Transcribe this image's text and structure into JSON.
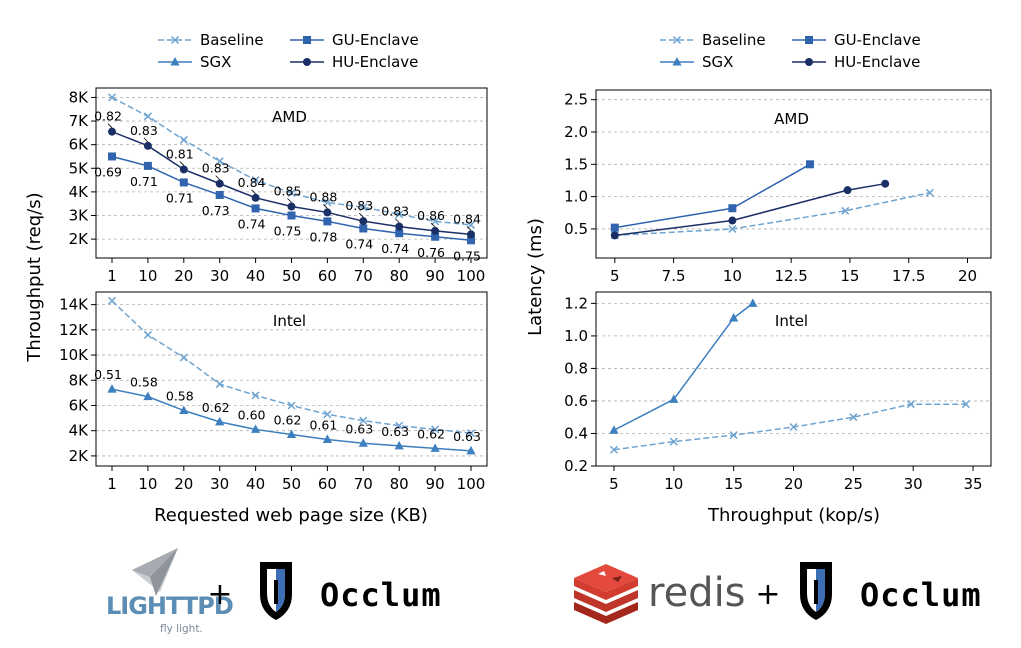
{
  "colors": {
    "baseline": "#6fa3d0",
    "sgx": "#3d7fbf",
    "gu": "#3064ae",
    "hu": "#1a2f66",
    "grid": "#b0b0b0"
  },
  "logos": {
    "lighttpd_name": "LIGHTTPD",
    "lighttpd_tagline": "fly light.",
    "plus": "+",
    "occlum": "Occlum",
    "redis": "redis"
  },
  "chart_data": [
    {
      "type": "line",
      "panel": "left-top",
      "title": "AMD",
      "xlabel": "Requested web page size (KB)",
      "ylabel": "Throughput (req/s)",
      "categories": [
        "1",
        "10",
        "20",
        "30",
        "40",
        "50",
        "60",
        "70",
        "80",
        "90",
        "100"
      ],
      "yticks": [
        "2K",
        "3K",
        "4K",
        "5K",
        "6K",
        "7K",
        "8K"
      ],
      "ylim": [
        1200,
        8400
      ],
      "grid": true,
      "legend": {
        "placement": "top-center",
        "entries": [
          "Baseline",
          "SGX",
          "GU-Enclave",
          "HU-Enclave"
        ]
      },
      "series": [
        {
          "name": "Baseline",
          "key": "baseline",
          "marker": "x",
          "dash": true,
          "values": [
            8000,
            7200,
            6200,
            5300,
            4500,
            3950,
            3550,
            3350,
            3050,
            2750,
            2600
          ]
        },
        {
          "name": "GU-Enclave",
          "key": "gu",
          "marker": "square",
          "dash": false,
          "values": [
            5500,
            5100,
            4400,
            3870,
            3300,
            3000,
            2750,
            2450,
            2250,
            2100,
            1950
          ]
        },
        {
          "name": "HU-Enclave",
          "key": "hu",
          "marker": "circle",
          "dash": false,
          "values": [
            6550,
            5950,
            4950,
            4350,
            3750,
            3380,
            3130,
            2760,
            2530,
            2350,
            2200
          ]
        }
      ],
      "annotations_hu": [
        "0.82",
        "0.83",
        "0.81",
        "0.83",
        "0.84",
        "0.85",
        "0.88",
        "0.83",
        "0.83",
        "0.86",
        "0.84"
      ],
      "annotations_gu": [
        "0.69",
        "0.71",
        "0.71",
        "0.73",
        "0.74",
        "0.75",
        "0.78",
        "0.74",
        "0.74",
        "0.76",
        "0.75"
      ]
    },
    {
      "type": "line",
      "panel": "left-bottom",
      "title": "Intel",
      "xlabel": "Requested web page size (KB)",
      "ylabel": "Throughput (req/s)",
      "categories": [
        "1",
        "10",
        "20",
        "30",
        "40",
        "50",
        "60",
        "70",
        "80",
        "90",
        "100"
      ],
      "yticks": [
        "2K",
        "4K",
        "6K",
        "8K",
        "10K",
        "12K",
        "14K"
      ],
      "ylim": [
        1200,
        15000
      ],
      "grid": true,
      "series": [
        {
          "name": "Baseline",
          "key": "baseline",
          "marker": "x",
          "dash": true,
          "values": [
            14300,
            11600,
            9800,
            7700,
            6800,
            6000,
            5300,
            4800,
            4400,
            4100,
            3800
          ]
        },
        {
          "name": "SGX",
          "key": "sgx",
          "marker": "triangle",
          "dash": false,
          "values": [
            7300,
            6700,
            5600,
            4700,
            4100,
            3700,
            3300,
            3000,
            2800,
            2600,
            2400
          ]
        }
      ],
      "annotations_sgx": [
        "0.51",
        "0.58",
        "0.58",
        "0.62",
        "0.60",
        "0.62",
        "0.61",
        "0.63",
        "0.63",
        "0.62",
        "0.63"
      ]
    },
    {
      "type": "line",
      "panel": "right-top",
      "title": "AMD",
      "xlabel": "Throughput (kop/s)",
      "ylabel": "Latency (ms)",
      "xlim": [
        4.2,
        21
      ],
      "xticks": [
        "5",
        "7.5",
        "10",
        "12.5",
        "15",
        "17.5",
        "20"
      ],
      "ylim": [
        0.05,
        2.65
      ],
      "yticks": [
        "0.5",
        "1.0",
        "1.5",
        "2.0",
        "2.5"
      ],
      "grid": true,
      "legend": {
        "placement": "top-center",
        "entries": [
          "Baseline",
          "SGX",
          "GU-Enclave",
          "HU-Enclave"
        ]
      },
      "series": [
        {
          "name": "Baseline",
          "key": "baseline",
          "marker": "x",
          "dash": true,
          "x": [
            5,
            10,
            14.8,
            18.4
          ],
          "y": [
            0.4,
            0.5,
            0.78,
            1.06
          ]
        },
        {
          "name": "GU-Enclave",
          "key": "gu",
          "marker": "square",
          "dash": false,
          "x": [
            5,
            10,
            13.3
          ],
          "y": [
            0.52,
            0.82,
            1.5
          ]
        },
        {
          "name": "HU-Enclave",
          "key": "hu",
          "marker": "circle",
          "dash": false,
          "x": [
            5,
            10,
            14.9,
            16.5
          ],
          "y": [
            0.4,
            0.63,
            1.1,
            1.2
          ]
        }
      ]
    },
    {
      "type": "line",
      "panel": "right-bottom",
      "title": "Intel",
      "xlabel": "Throughput (kop/s)",
      "ylabel": "Latency (ms)",
      "xlim": [
        3.5,
        36.5
      ],
      "xticks": [
        "5",
        "10",
        "15",
        "20",
        "25",
        "30",
        "35"
      ],
      "ylim": [
        0.2,
        1.27
      ],
      "yticks": [
        "0.2",
        "0.4",
        "0.6",
        "0.8",
        "1.0",
        "1.2"
      ],
      "grid": true,
      "series": [
        {
          "name": "Baseline",
          "key": "baseline",
          "marker": "x",
          "dash": true,
          "x": [
            5,
            10,
            15,
            20,
            25,
            29.8,
            34.4
          ],
          "y": [
            0.3,
            0.35,
            0.39,
            0.44,
            0.5,
            0.58,
            0.58
          ]
        },
        {
          "name": "SGX",
          "key": "sgx",
          "marker": "triangle",
          "dash": false,
          "x": [
            5,
            10,
            15,
            16.6
          ],
          "y": [
            0.42,
            0.61,
            1.11,
            1.2
          ]
        }
      ]
    }
  ]
}
